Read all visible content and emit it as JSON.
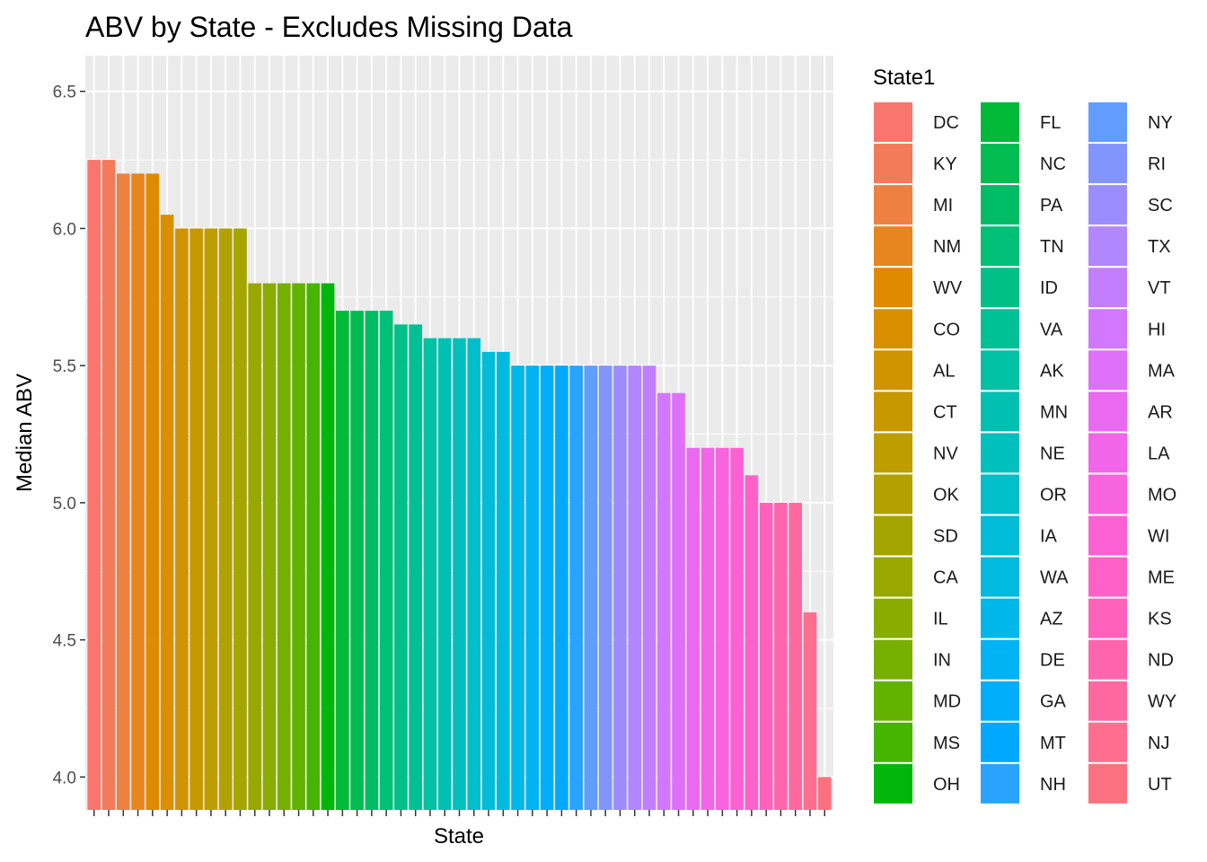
{
  "chart_data": {
    "type": "bar",
    "title": "ABV by State - Excludes Missing Data",
    "xlabel": "State",
    "ylabel": "Median ABV",
    "ylim": [
      3.88,
      6.63
    ],
    "yticks": [
      4.0,
      4.5,
      5.0,
      5.5,
      6.0,
      6.5
    ],
    "ytick_labels": [
      "4.0",
      "4.5",
      "5.0",
      "5.5",
      "6.0",
      "6.5"
    ],
    "grid": true,
    "legend": {
      "title": "State1",
      "placement": "right",
      "columns": 3
    },
    "categories": [
      "DC",
      "KY",
      "MI",
      "NM",
      "WV",
      "CO",
      "AL",
      "CT",
      "NV",
      "OK",
      "SD",
      "CA",
      "IL",
      "IN",
      "MD",
      "MS",
      "OH",
      "FL",
      "NC",
      "PA",
      "TN",
      "ID",
      "VA",
      "AK",
      "MN",
      "NE",
      "OR",
      "IA",
      "WA",
      "AZ",
      "DE",
      "GA",
      "MT",
      "NH",
      "NY",
      "RI",
      "SC",
      "TX",
      "VT",
      "HI",
      "MA",
      "AR",
      "LA",
      "MO",
      "WI",
      "ME",
      "KS",
      "ND",
      "WY",
      "NJ",
      "UT"
    ],
    "values": [
      6.25,
      6.25,
      6.2,
      6.2,
      6.2,
      6.05,
      6.0,
      6.0,
      6.0,
      6.0,
      6.0,
      5.8,
      5.8,
      5.8,
      5.8,
      5.8,
      5.8,
      5.7,
      5.7,
      5.7,
      5.7,
      5.65,
      5.65,
      5.6,
      5.6,
      5.6,
      5.6,
      5.55,
      5.55,
      5.5,
      5.5,
      5.5,
      5.5,
      5.5,
      5.5,
      5.5,
      5.5,
      5.5,
      5.5,
      5.4,
      5.4,
      5.2,
      5.2,
      5.2,
      5.2,
      5.1,
      5.0,
      5.0,
      5.0,
      4.6,
      4.0
    ]
  }
}
